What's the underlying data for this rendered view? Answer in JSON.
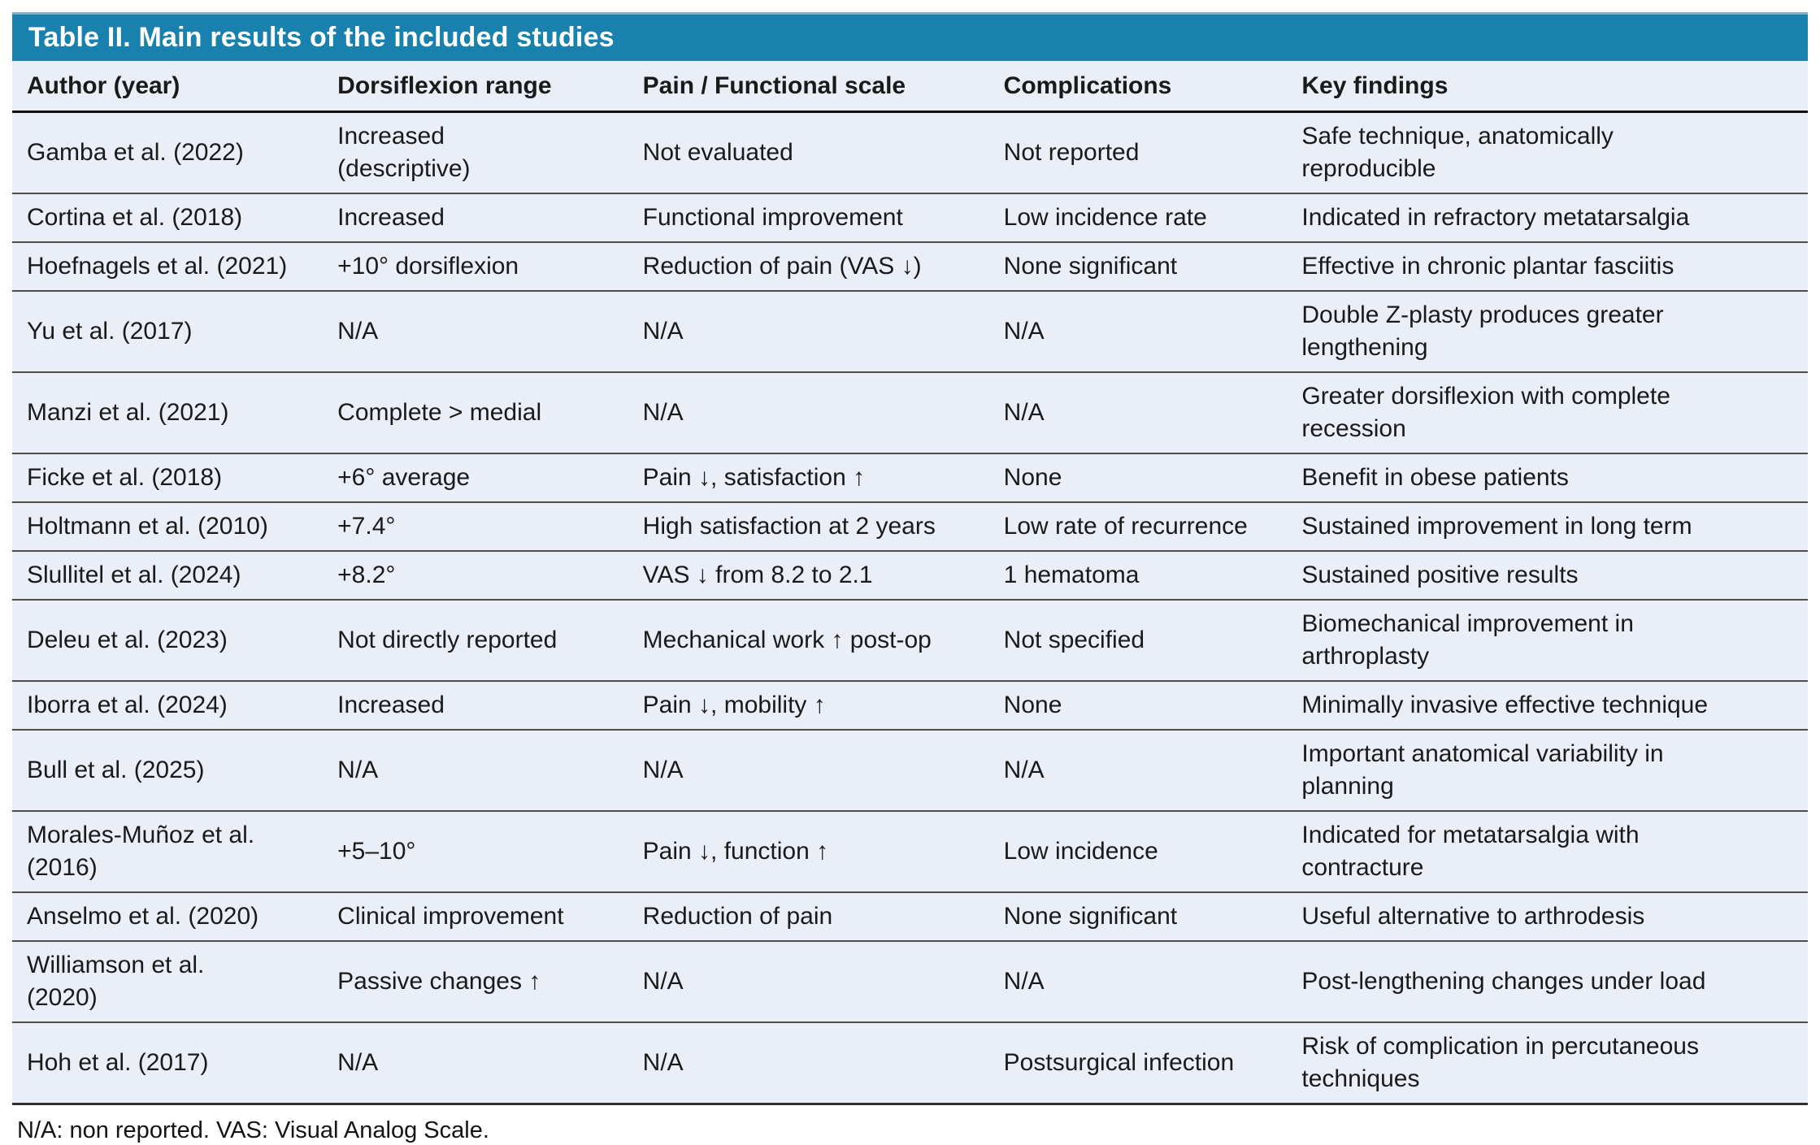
{
  "table": {
    "title": "Table II. Main results of the included studies",
    "columns": [
      "Author (year)",
      "Dorsiflexion range",
      "Pain / Functional scale",
      "Complications",
      "Key findings"
    ],
    "rows": [
      [
        "Gamba et al. (2022)",
        "Increased\n(descriptive)",
        "Not evaluated",
        "Not reported",
        "Safe technique, anatomically\nreproducible"
      ],
      [
        "Cortina et al. (2018)",
        "Increased",
        "Functional improvement",
        "Low incidence rate",
        "Indicated in refractory metatarsalgia"
      ],
      [
        "Hoefnagels et al. (2021)",
        "+10° dorsiflexion",
        "Reduction of pain (VAS ↓)",
        "None significant",
        "Effective in chronic plantar fasciitis"
      ],
      [
        "Yu et al. (2017)",
        "N/A",
        "N/A",
        "N/A",
        "Double Z-plasty produces greater\nlengthening"
      ],
      [
        "Manzi et al. (2021)",
        "Complete > medial",
        "N/A",
        "N/A",
        "Greater dorsiflexion with complete\nrecession"
      ],
      [
        "Ficke et al. (2018)",
        "+6° average",
        "Pain ↓, satisfaction ↑",
        "None",
        "Benefit in obese patients"
      ],
      [
        "Holtmann et al. (2010)",
        "+7.4°",
        "High satisfaction at 2 years",
        "Low rate of recurrence",
        "Sustained improvement in long term"
      ],
      [
        "Slullitel et al. (2024)",
        "+8.2°",
        "VAS ↓ from 8.2 to 2.1",
        "1 hematoma",
        "Sustained positive results"
      ],
      [
        "Deleu et al. (2023)",
        "Not directly reported",
        "Mechanical work ↑ post-op",
        "Not specified",
        "Biomechanical improvement in\narthroplasty"
      ],
      [
        "Iborra et al. (2024)",
        "Increased",
        "Pain ↓, mobility ↑",
        "None",
        "Minimally invasive effective technique"
      ],
      [
        "Bull et al. (2025)",
        "N/A",
        "N/A",
        "N/A",
        "Important anatomical variability in\nplanning"
      ],
      [
        "Morales-Muñoz et al.\n(2016)",
        "+5–10°",
        "Pain ↓, function ↑",
        "Low incidence",
        "Indicated for metatarsalgia with\ncontracture"
      ],
      [
        "Anselmo et al. (2020)",
        "Clinical improvement",
        "Reduction of pain",
        "None significant",
        "Useful alternative to arthrodesis"
      ],
      [
        "Williamson et al.\n(2020)",
        "Passive changes ↑",
        "N/A",
        "N/A",
        "Post-lengthening changes under load"
      ],
      [
        "Hoh et al. (2017)",
        "N/A",
        "N/A",
        "Postsurgical infection",
        "Risk of complication in percutaneous\ntechniques"
      ]
    ],
    "footnote": "N/A: non reported. VAS: Visual Analog Scale."
  },
  "colors": {
    "title_bar_bg": "#1981AE",
    "row_bg": "#E9EEF7"
  }
}
